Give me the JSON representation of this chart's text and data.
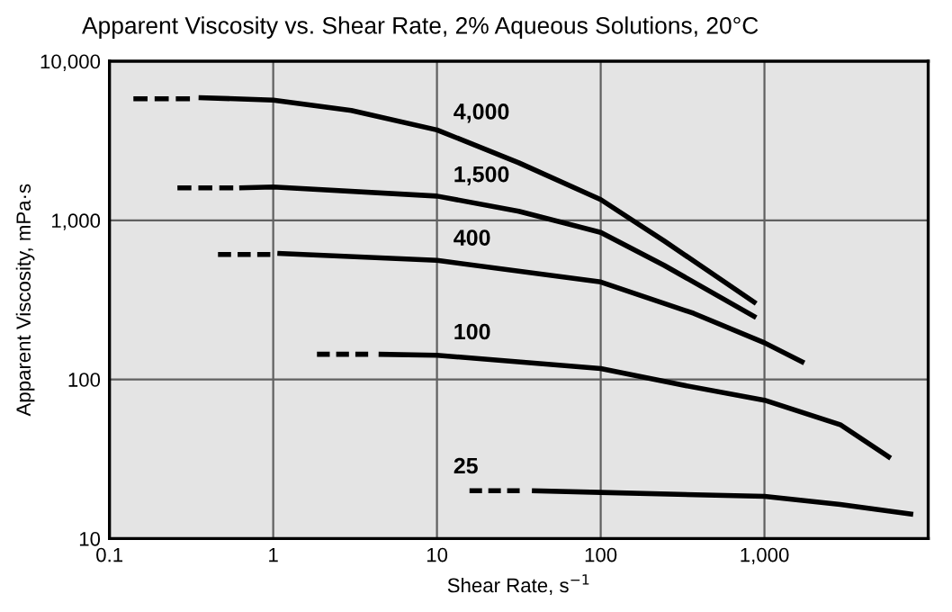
{
  "chart_data": {
    "type": "line",
    "title": "Apparent Viscosity vs. Shear Rate, 2% Aqueous Solutions, 20°C",
    "xlabel": "Shear Rate, s$^{−1}$",
    "ylabel": "Apparent Viscosity, mPa·s",
    "log": "xy",
    "grid": true,
    "legend": false,
    "marker": "none",
    "xlim": [
      0.1,
      10000
    ],
    "ylim": [
      10,
      10000
    ],
    "xticks": [
      0.1,
      1,
      10,
      100,
      {
        "value": 1000,
        "label": "1,000"
      }
    ],
    "yticks": [
      10,
      100,
      {
        "value": 1000,
        "label": "1,000"
      },
      {
        "value": 10000,
        "label": "10,000"
      }
    ],
    "series": [
      {
        "color": "#000000",
        "line_style": "dashed",
        "x": [
          0.14,
          0.31
        ],
        "values": [
          5800,
          5800
        ]
      },
      {
        "name": "4,000",
        "color": "#000000",
        "line_style": "solid",
        "x": [
          0.35,
          1,
          3,
          10,
          31.6,
          100,
          245,
          890
        ],
        "values": [
          5900,
          5700,
          4900,
          3700,
          2300,
          1350,
          740,
          300
        ]
      },
      {
        "color": "#000000",
        "line_style": "dashed",
        "x": [
          0.26,
          0.57
        ],
        "values": [
          1600,
          1600
        ]
      },
      {
        "name": "1,500",
        "color": "#000000",
        "line_style": "solid",
        "x": [
          0.62,
          1,
          10,
          31.6,
          100,
          245,
          890
        ],
        "values": [
          1600,
          1620,
          1420,
          1140,
          840,
          520,
          245
        ]
      },
      {
        "color": "#000000",
        "line_style": "dashed",
        "x": [
          0.46,
          0.96
        ],
        "values": [
          610,
          610
        ]
      },
      {
        "name": "400",
        "color": "#000000",
        "line_style": "solid",
        "x": [
          1.06,
          10,
          100,
          370,
          1000,
          1750
        ],
        "values": [
          620,
          560,
          410,
          260,
          170,
          127
        ]
      },
      {
        "color": "#000000",
        "line_style": "dashed",
        "x": [
          1.85,
          3.8
        ],
        "values": [
          144,
          144
        ]
      },
      {
        "name": "100",
        "color": "#000000",
        "line_style": "solid",
        "x": [
          4.4,
          10,
          100,
          320,
          1000,
          2900,
          5900
        ],
        "values": [
          144,
          142,
          117,
          92,
          74,
          52,
          32
        ]
      },
      {
        "color": "#000000",
        "line_style": "dashed",
        "x": [
          15.8,
          32
        ],
        "values": [
          20,
          20
        ]
      },
      {
        "name": "25",
        "color": "#000000",
        "line_style": "solid",
        "x": [
          38,
          100,
          1000,
          2900,
          8100
        ],
        "values": [
          20,
          19.5,
          18.4,
          16.4,
          14.2
        ]
      }
    ]
  }
}
